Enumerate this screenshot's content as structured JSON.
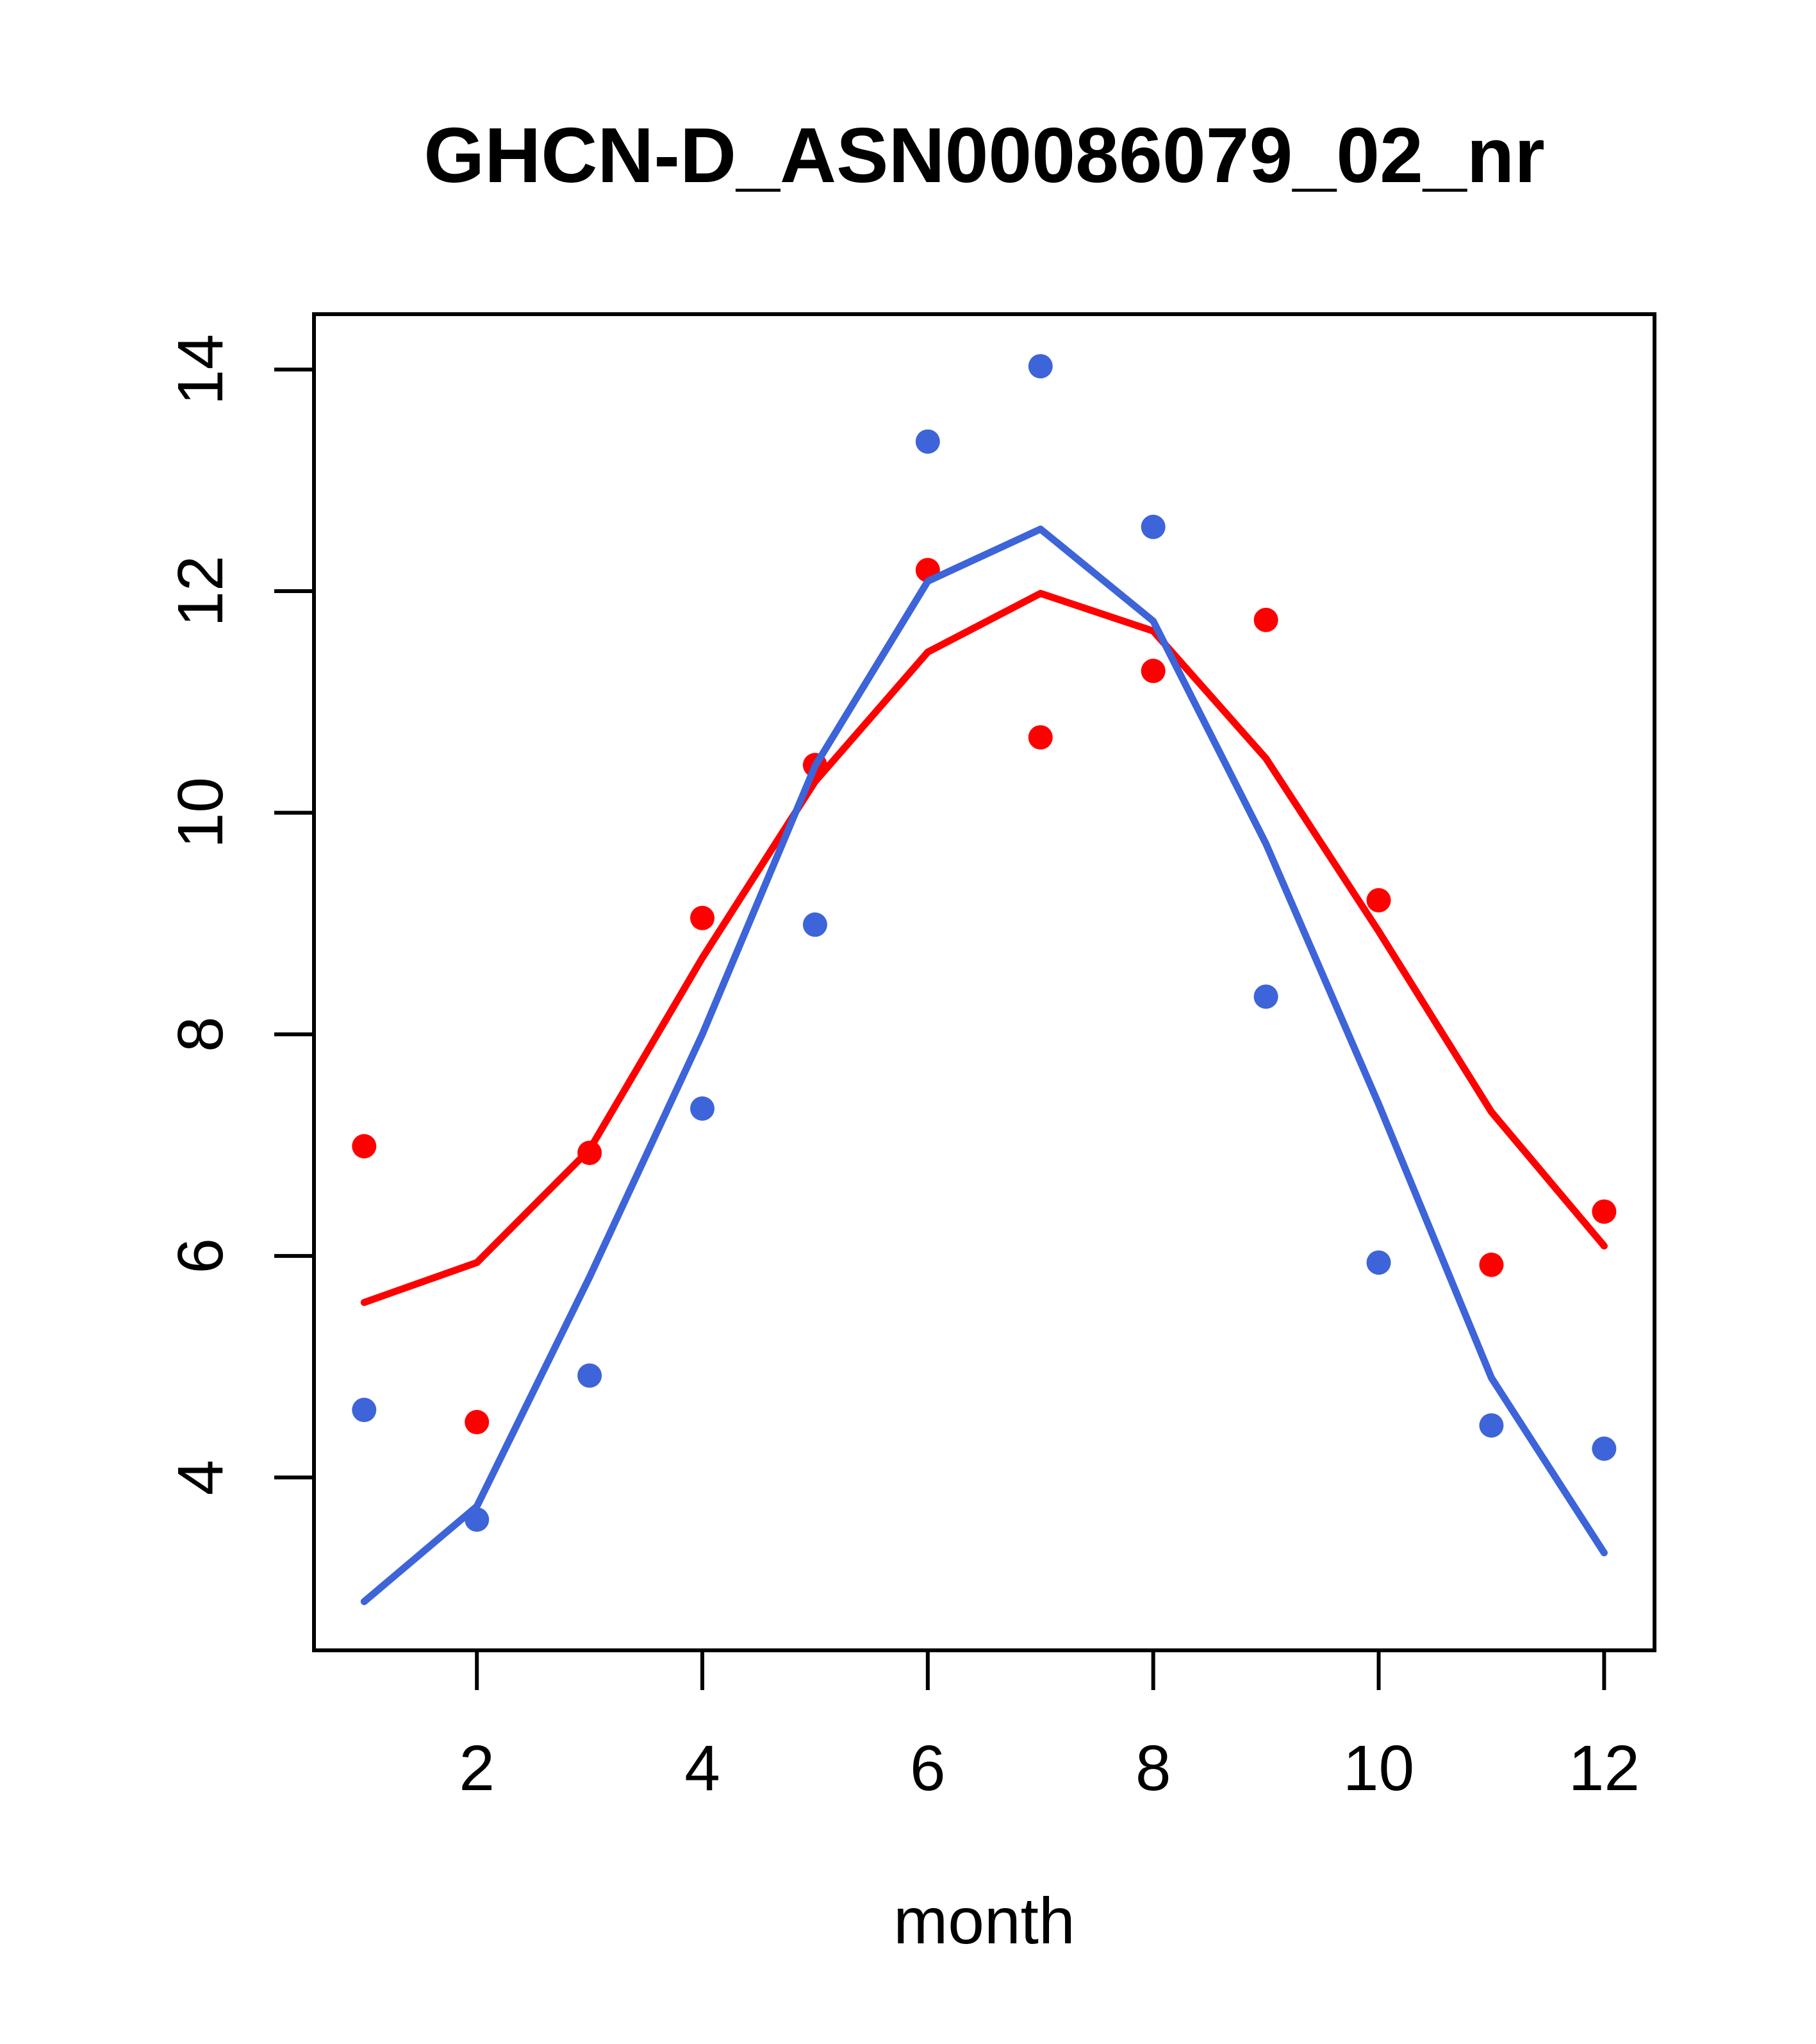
{
  "chart_data": {
    "type": "scatter",
    "title": "GHCN-D_ASN00086079_02_nr",
    "xlabel": "month",
    "ylabel": "",
    "x": [
      1,
      2,
      3,
      4,
      5,
      6,
      7,
      8,
      9,
      10,
      11,
      12
    ],
    "x_ticks": [
      2,
      4,
      6,
      8,
      10,
      12
    ],
    "y_ticks": [
      4,
      6,
      8,
      10,
      12,
      14
    ],
    "xlim": [
      0.555,
      12.447
    ],
    "ylim": [
      2.44,
      14.5
    ],
    "grid": false,
    "legend": "none",
    "box": true,
    "axis_color": "#000000",
    "series": [
      {
        "name": "red-points",
        "kind": "points",
        "color": "#FF0000",
        "values": [
          6.99,
          4.5,
          6.93,
          9.05,
          10.43,
          12.19,
          10.68,
          11.28,
          11.74,
          9.21,
          5.92,
          6.4
        ]
      },
      {
        "name": "blue-points",
        "kind": "points",
        "color": "#3D64D8",
        "values": [
          4.61,
          3.62,
          4.92,
          7.33,
          8.99,
          13.35,
          14.03,
          12.58,
          8.34,
          5.94,
          4.47,
          4.26
        ]
      },
      {
        "name": "red-trend-line",
        "kind": "line",
        "color": "#FF0000",
        "values": [
          5.58,
          5.94,
          6.96,
          8.69,
          10.28,
          11.45,
          11.98,
          11.64,
          10.49,
          8.93,
          7.3,
          6.09
        ]
      },
      {
        "name": "blue-trend-line",
        "kind": "line",
        "color": "#3D64D8",
        "values": [
          2.88,
          3.74,
          5.81,
          8.0,
          10.42,
          12.09,
          12.56,
          11.73,
          9.72,
          7.37,
          4.9,
          3.32
        ]
      }
    ]
  }
}
